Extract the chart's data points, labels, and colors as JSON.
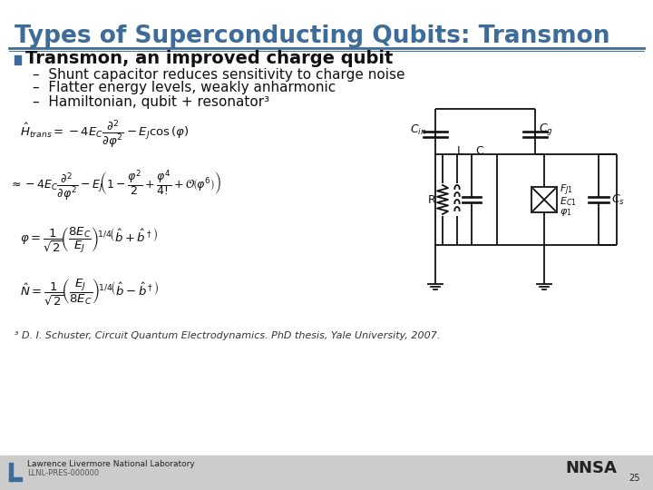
{
  "title": "Types of Superconducting Qubits: Transmon",
  "title_color": "#3D6B9A",
  "title_fontsize": 19,
  "header_line_color": "#3D6B9A",
  "bg_color": "#FFFFFF",
  "footer_bg_color": "#CCCCCC",
  "bullet_color": "#3D6B9A",
  "bullet_text": "Transmon, an improved charge qubit",
  "bullet_fontsize": 14,
  "subbullets": [
    "–  Shunt capacitor reduces sensitivity to charge noise",
    "–  Flatter energy levels, weakly anharmonic",
    "–  Hamiltonian, qubit + resonator³"
  ],
  "subbullet_fontsize": 11,
  "footnote": "³ D. I. Schuster, Circuit Quantum Electrodynamics. PhD thesis, Yale University, 2007.",
  "footnote_fontsize": 8,
  "footer_text_left": "Lawrence Livermore National Laboratory",
  "footer_text_left2": "LLNL-PRES-000000",
  "page_number": "25",
  "math_color": "#111111",
  "circuit_color": "#111111"
}
